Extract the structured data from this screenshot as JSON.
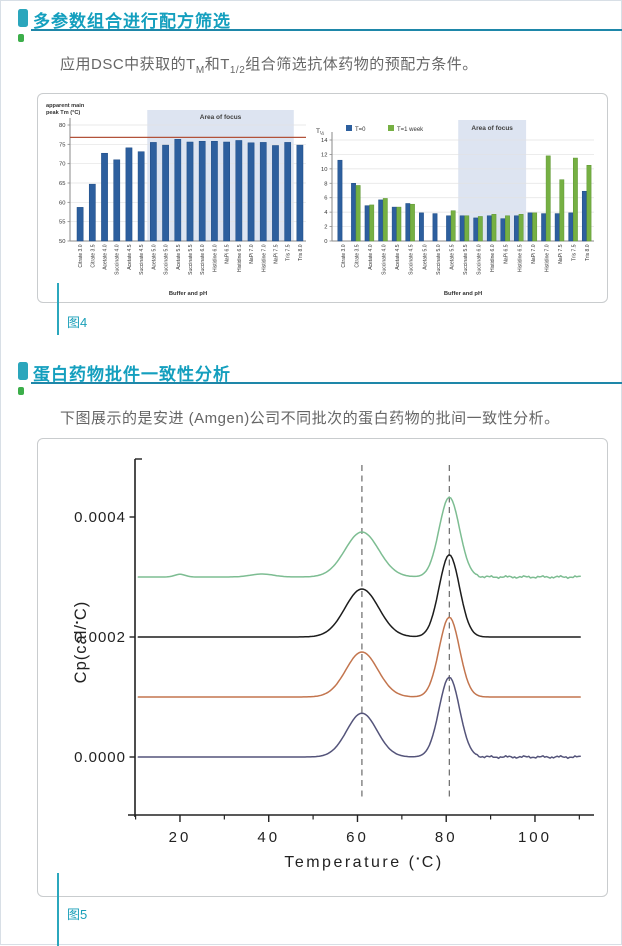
{
  "accent": {
    "teal_text": "#149fbe",
    "bullet": "#2ba6bc",
    "underline": "#1e87a9",
    "green_dot": "#3cae4a",
    "caption_color": "#199fb8",
    "caption_line": "#2ba7bd"
  },
  "section1": {
    "heading": "多参数组合进行配方筛选",
    "body": {
      "prefix": "应用DSC中获取的T",
      "sub_m": "M",
      "mid": "和T",
      "sub_half": "1/2",
      "suffix": "组合筛选抗体药物的预配方条件。"
    },
    "caption": "图4"
  },
  "section2": {
    "heading": "蛋白药物批件一致性分析",
    "body": "下图展示的是安进 (Amgen)公司不同批次的蛋白药物的批间一致性分析。",
    "caption": "图5"
  },
  "chart_data": [
    {
      "type": "bar",
      "name": "apparent-main-peak-tm",
      "title_lines": [
        "apparent main",
        "peak Tm (°C)"
      ],
      "xlabel": "Buffer and pH",
      "categories": [
        "Citrate 3.0",
        "Citrate 3.5",
        "Acetate 4.0",
        "Succinate 4.0",
        "Acetate 4.5",
        "Succinate 4.5",
        "Acetate 5.0",
        "Succinate 5.0",
        "Acetate 5.5",
        "Succinate 5.5",
        "Succinate 6.0",
        "Histidine 6.0",
        "NaPi 6.5",
        "Histidine 6.5",
        "NaPi 7.0",
        "Histidine 7.0",
        "NaPi 7.5",
        "Tris 7.5",
        "Tris 8.0"
      ],
      "values": [
        58.7,
        64.7,
        72.7,
        71.0,
        74.1,
        73.1,
        75.5,
        74.8,
        76.3,
        75.6,
        75.8,
        75.8,
        75.6,
        76.0,
        75.4,
        75.5,
        74.7,
        75.5,
        74.8
      ],
      "ylim": [
        50,
        80
      ],
      "ytick_step": 5,
      "grid": true,
      "bar_color": "#2d5f9e",
      "bar_edge_color": "#1d4b85",
      "ref_line": {
        "value": 76.8,
        "color": "#b2523a"
      },
      "focus": {
        "label": "Area of focus",
        "from_index": 6,
        "to_index": 17,
        "fill": "#dde4f1"
      }
    },
    {
      "type": "bar",
      "name": "t-half",
      "ylabel": {
        "main": "T",
        "sub": "½"
      },
      "xlabel": "Buffer and pH",
      "categories": [
        "Citrate 3.0",
        "Citrate 3.5",
        "Acetate 4.0",
        "Succinate 4.0",
        "Acetate 4.5",
        "Succinate 4.5",
        "Acetate 5.0",
        "Succinate 5.0",
        "Acetate 5.5",
        "Succinate 5.5",
        "Succinate 6.0",
        "Histidine 6.0",
        "NaPi 6.5",
        "Histidine 6.5",
        "NaPi 7.0",
        "Histidine 7.0",
        "NaPi 7.5",
        "Tris 7.5",
        "Tris 8.0"
      ],
      "series": [
        {
          "name": "T=0",
          "color": "#2d5f9e",
          "edge": "#1d4b85",
          "values": [
            11.2,
            8.0,
            4.9,
            5.7,
            4.7,
            5.2,
            3.9,
            3.8,
            3.5,
            3.5,
            3.2,
            3.5,
            3.1,
            3.5,
            3.9,
            3.8,
            3.8,
            3.9,
            6.9
          ]
        },
        {
          "name": "T=1 week",
          "color": "#76b043",
          "edge": "#5d9632",
          "values": [
            null,
            7.7,
            5.0,
            5.9,
            4.7,
            5.1,
            null,
            null,
            4.2,
            3.5,
            3.4,
            3.7,
            3.5,
            3.7,
            3.9,
            11.8,
            8.5,
            11.5,
            10.5
          ]
        }
      ],
      "ylim": [
        0,
        14
      ],
      "ytick_step": 2,
      "grid": true,
      "legend_position": "top",
      "focus": {
        "label": "Area of focus",
        "from_index": 9,
        "to_index": 13,
        "fill": "#dde4f1"
      }
    },
    {
      "type": "line",
      "name": "dsc-thermograms",
      "xlabel": "Temperature (▪C)",
      "ylabel": "Cp(cal/▪C)",
      "xlim": [
        10,
        111
      ],
      "xticks": [
        20,
        40,
        60,
        80,
        100
      ],
      "minor_xticks": [
        10,
        30,
        50,
        70,
        90,
        110
      ],
      "yticks": [
        {
          "value": 0.0,
          "label": "0.0000"
        },
        {
          "value": 0.0002,
          "label": "0.0002"
        },
        {
          "value": 0.0004,
          "label": "0.0004"
        }
      ],
      "dashed_guides_x": [
        61,
        80.7
      ],
      "series": [
        {
          "name": "lot-green",
          "color": "#7dbd92",
          "baseline": 0.0003,
          "peaks": [
            {
              "x": 61,
              "h": 7.5e-05,
              "w": 3.8
            },
            {
              "x": 80.7,
              "h": 0.000133,
              "w": 2.3
            }
          ],
          "bumps": [
            {
              "x": 20,
              "h": 4.5e-06,
              "w": 1.2
            },
            {
              "x": 38.5,
              "h": 5e-06,
              "w": 2.6
            }
          ],
          "tail_noise": true
        },
        {
          "name": "lot-black",
          "color": "#1c1c1c",
          "baseline": 0.0002,
          "peaks": [
            {
              "x": 61,
              "h": 8e-05,
              "w": 3.8
            },
            {
              "x": 80.7,
              "h": 0.000137,
              "w": 2.3
            }
          ],
          "bumps": [],
          "tail_noise": false
        },
        {
          "name": "lot-orange",
          "color": "#c3754e",
          "baseline": 0.0001,
          "peaks": [
            {
              "x": 61,
              "h": 7.5e-05,
              "w": 3.6
            },
            {
              "x": 80.7,
              "h": 0.000133,
              "w": 2.3
            }
          ],
          "bumps": [],
          "tail_noise": false
        },
        {
          "name": "lot-navy",
          "color": "#54547a",
          "baseline": 0.0,
          "peaks": [
            {
              "x": 61,
              "h": 7.3e-05,
              "w": 3.4
            },
            {
              "x": 80.7,
              "h": 0.000133,
              "w": 2.3
            }
          ],
          "bumps": [],
          "tail_noise": true
        }
      ]
    }
  ]
}
